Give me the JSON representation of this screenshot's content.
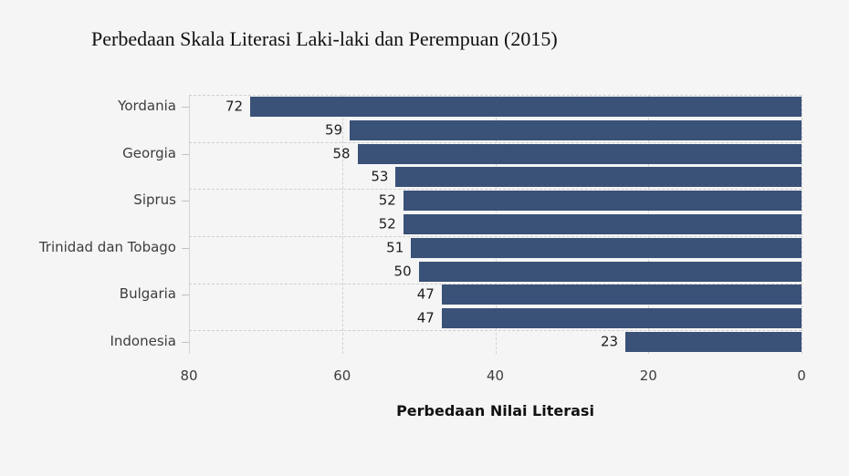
{
  "page": {
    "background_color": "#f5f5f5"
  },
  "chart_data": {
    "type": "bar",
    "orientation": "horizontal",
    "title": "Perbedaan Skala Literasi Laki-laki dan Perempuan (2015)",
    "xlabel": "Perbedaan Nilai Literasi",
    "ylabel": "",
    "x_axis_reversed": true,
    "xlim": [
      0,
      80
    ],
    "x_ticks": [
      80,
      60,
      40,
      20,
      0
    ],
    "grid": {
      "style": "dashed",
      "color": "#cfcfcf",
      "horizontal_every_n_bars": 2
    },
    "bar_color": "#3a5178",
    "legend": "none",
    "bars": [
      {
        "label": "Yordania",
        "value": 72
      },
      {
        "label": "",
        "value": 59
      },
      {
        "label": "Georgia",
        "value": 58
      },
      {
        "label": "",
        "value": 53
      },
      {
        "label": "Siprus",
        "value": 52
      },
      {
        "label": "",
        "value": 52
      },
      {
        "label": "Trinidad dan Tobago",
        "value": 51
      },
      {
        "label": "",
        "value": 50
      },
      {
        "label": "Bulgaria",
        "value": 47
      },
      {
        "label": "",
        "value": 47
      },
      {
        "label": "Indonesia",
        "value": 23
      }
    ]
  }
}
